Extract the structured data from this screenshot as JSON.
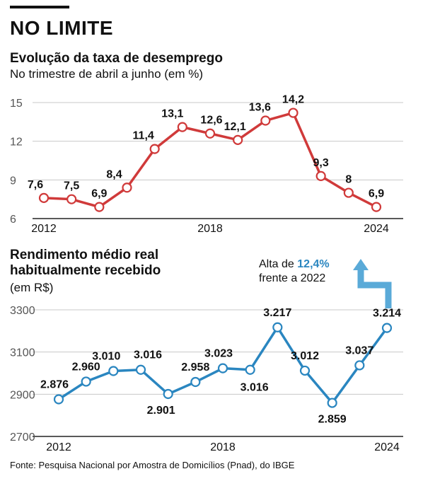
{
  "header": {
    "headline": "NO LIMITE",
    "source": "Fonte: Pesquisa Nacional por Amostra de Domicílios (Pnad), do IBGE"
  },
  "callout": {
    "prefix": "Alta de ",
    "highlight": "12,4%",
    "line2": "frente a 2022"
  },
  "colors": {
    "red": "#d03a3a",
    "blue": "#2a86c0",
    "grid": "#c8c8c8",
    "axis": "#222222"
  },
  "chart_data": [
    {
      "type": "line",
      "title": "Evolução da taxa de desemprego",
      "subtitle": "No trimestre de abril a junho (em %)",
      "x": [
        2012,
        2013,
        2014,
        2015,
        2016,
        2017,
        2018,
        2019,
        2020,
        2021,
        2022,
        2023,
        2024
      ],
      "x_tick_labels": [
        "2012",
        "2018",
        "2024"
      ],
      "y_ticks": [
        6,
        9,
        12,
        15
      ],
      "y_tick_labels": [
        "6",
        "9",
        "12",
        "15"
      ],
      "ylim": [
        6,
        15
      ],
      "series": [
        {
          "values": [
            7.6,
            7.5,
            6.9,
            8.4,
            11.4,
            13.1,
            12.6,
            12.1,
            13.6,
            14.2,
            9.3,
            8,
            6.9
          ],
          "labels": [
            "7,6",
            "7,5",
            "6,9",
            "8,4",
            "11,4",
            "13,1",
            "12,6",
            "12,1",
            "13,6",
            "14,2",
            "9,3",
            "8",
            "6,9"
          ],
          "color": "#d03a3a"
        }
      ],
      "grid": true
    },
    {
      "type": "line",
      "title": "Rendimento médio real habitualmente recebido",
      "title_lines": [
        "Rendimento médio real",
        "habitualmente recebido"
      ],
      "subtitle": "(em R$)",
      "x": [
        2012,
        2013,
        2014,
        2015,
        2016,
        2017,
        2018,
        2019,
        2020,
        2021,
        2022,
        2023,
        2024
      ],
      "x_tick_labels": [
        "2012",
        "2018",
        "2024"
      ],
      "y_ticks": [
        2700,
        2900,
        3100,
        3300
      ],
      "y_tick_labels": [
        "2700",
        "2900",
        "3100",
        "3300"
      ],
      "ylim": [
        2700,
        3300
      ],
      "series": [
        {
          "values": [
            2876,
            2960,
            3010,
            3016,
            2901,
            2958,
            3023,
            3016,
            3217,
            3012,
            2859,
            3037,
            3214
          ],
          "labels": [
            "2.876",
            "2.960",
            "3.010",
            "3.016",
            "2.901",
            "2.958",
            "3.023",
            "3.016",
            "3.217",
            "3.012",
            "2.859",
            "3.037",
            "3.214"
          ],
          "color": "#2a86c0"
        }
      ],
      "grid": true
    }
  ]
}
